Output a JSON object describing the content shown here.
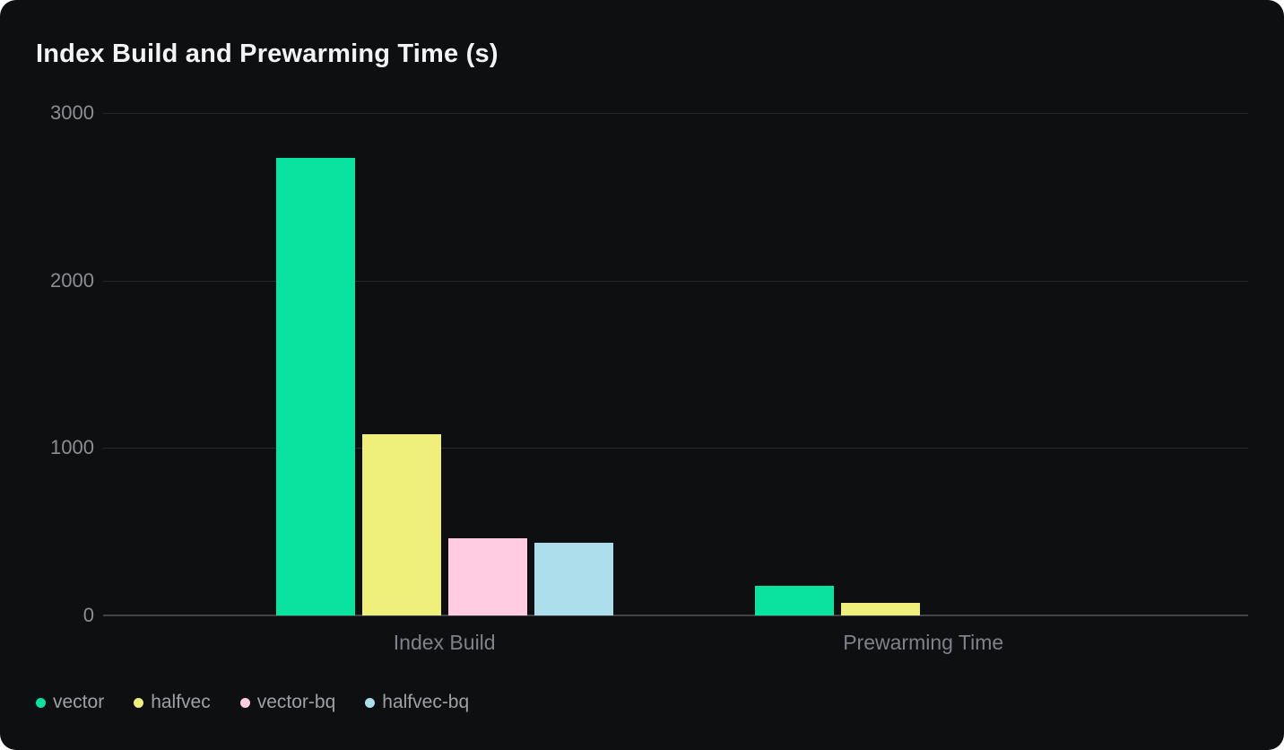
{
  "chart_data": {
    "type": "bar",
    "title": "Index Build and Prewarming Time (s)",
    "categories": [
      "Index Build",
      "Prewarming Time"
    ],
    "series": [
      {
        "name": "vector",
        "color": "#0ae3a0",
        "values": [
          2730,
          178
        ]
      },
      {
        "name": "halfvec",
        "color": "#eef07b",
        "values": [
          1080,
          77
        ]
      },
      {
        "name": "vector-bq",
        "color": "#ffcce2",
        "values": [
          460,
          0
        ]
      },
      {
        "name": "halfvec-bq",
        "color": "#addeeb",
        "values": [
          435,
          0
        ]
      }
    ],
    "xlabel": "",
    "ylabel": "",
    "ylim": [
      0,
      3000
    ],
    "yticks": [
      0,
      1000,
      2000,
      3000
    ],
    "ytick_labels": [
      "0",
      "1000",
      "2000",
      "3000"
    ],
    "grid": true,
    "legend_position": "bottom-left"
  },
  "colors": {
    "page_background": "#ffffff",
    "card_background": "#0e0f10",
    "title_text": "#f2f3f4",
    "tick_text": "#8c8e93",
    "axis_label_text": "#7f828a",
    "legend_text": "#9ea0a5",
    "gridline": "#29292b",
    "baseline": "#434448"
  }
}
